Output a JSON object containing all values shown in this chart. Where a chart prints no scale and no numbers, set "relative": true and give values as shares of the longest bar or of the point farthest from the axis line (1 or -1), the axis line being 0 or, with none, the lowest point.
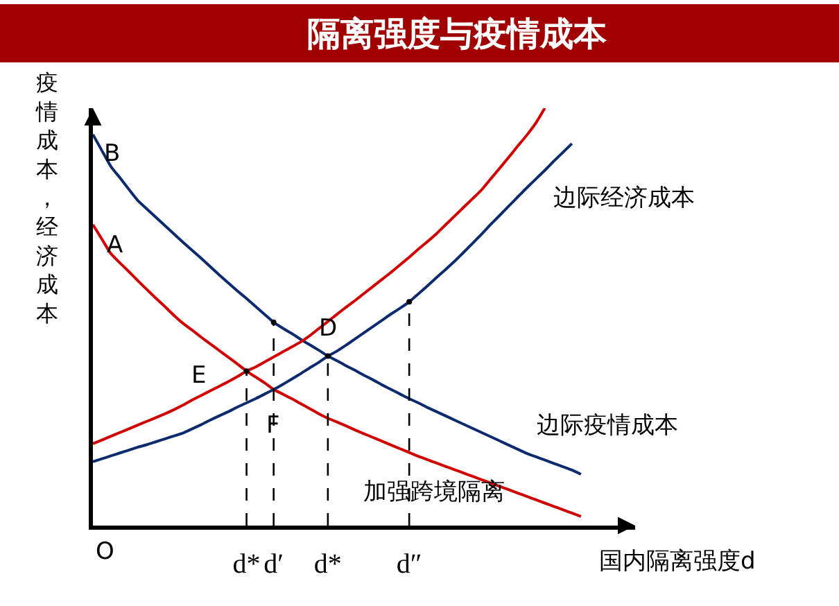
{
  "chart_data": {
    "type": "line",
    "title": "隔离强度与疫情成本",
    "xlabel": "国内隔离强度d",
    "ylabel": "疫情成本，经济成本",
    "relative": true,
    "legend": false,
    "line_style": "solid",
    "categories": [
      null,
      null,
      null,
      null,
      null,
      null,
      null,
      null,
      null,
      null,
      null,
      null,
      null,
      null,
      null,
      null,
      null,
      "d*",
      null,
      null,
      "d′",
      null,
      null,
      null,
      null,
      null,
      "d*",
      null,
      null,
      null,
      null,
      null,
      null,
      null,
      null,
      "d″",
      null,
      null,
      null,
      null,
      null,
      null,
      null,
      null,
      null,
      null,
      null,
      null,
      null,
      null,
      null,
      null,
      null,
      null,
      null,
      null,
      null,
      null,
      null,
      null,
      null
    ],
    "series": [
      {
        "name": "边际疫情成本",
        "color": "#0c2a6e",
        "values": [
          0.937,
          0.898,
          0.86,
          0.833,
          0.805,
          0.778,
          0.758,
          0.738,
          0.718,
          0.698,
          0.678,
          0.659,
          0.64,
          0.62,
          0.6,
          0.581,
          0.562,
          0.544,
          0.525,
          0.506,
          0.487,
          0.473,
          0.46,
          0.446,
          0.433,
          0.42,
          0.406,
          0.395,
          0.383,
          0.372,
          0.36,
          0.349,
          0.337,
          0.326,
          0.315,
          0.304,
          0.294,
          0.283,
          0.273,
          0.263,
          0.253,
          0.243,
          0.233,
          0.223,
          0.213,
          0.203,
          0.193,
          0.183,
          0.173,
          0.165,
          0.157,
          0.149,
          0.141,
          0.133,
          0.123,
          null,
          null,
          null,
          null,
          null,
          null
        ]
      },
      {
        "color": "#d00000",
        "values": [
          0.721,
          0.686,
          0.651,
          0.629,
          0.608,
          0.586,
          0.565,
          0.544,
          0.524,
          0.503,
          0.484,
          0.468,
          0.451,
          0.435,
          0.419,
          0.403,
          0.387,
          0.37,
          0.356,
          0.342,
          0.326,
          0.315,
          0.304,
          0.292,
          0.28,
          0.268,
          0.257,
          0.248,
          0.239,
          0.229,
          0.22,
          0.211,
          0.202,
          0.193,
          0.184,
          0.175,
          0.166,
          0.158,
          0.15,
          0.142,
          0.134,
          0.126,
          0.118,
          0.11,
          0.102,
          0.094,
          0.086,
          0.078,
          0.07,
          0.062,
          0.054,
          0.046,
          0.038,
          0.03,
          0.022,
          null,
          null,
          null,
          null,
          null,
          null
        ]
      },
      {
        "color": "#d00000",
        "values": [
          0.196,
          0.205,
          0.214,
          0.223,
          0.232,
          0.241,
          0.25,
          0.259,
          0.268,
          0.278,
          0.289,
          0.301,
          0.312,
          0.323,
          0.334,
          0.345,
          0.357,
          0.37,
          0.38,
          0.392,
          0.404,
          0.416,
          0.428,
          0.44,
          0.455,
          0.472,
          0.489,
          0.506,
          0.523,
          0.539,
          0.556,
          0.573,
          0.59,
          0.607,
          0.625,
          0.643,
          0.662,
          0.68,
          0.699,
          0.72,
          0.741,
          0.762,
          0.783,
          0.804,
          0.83,
          0.856,
          0.882,
          0.909,
          0.935,
          0.964,
          1.0,
          null,
          null,
          null,
          null,
          null,
          null,
          null,
          null,
          null,
          null
        ]
      },
      {
        "name": "边际经济成本",
        "color": "#0c2a6e",
        "values": [
          0.153,
          0.16,
          0.167,
          0.174,
          0.181,
          0.188,
          0.194,
          0.201,
          0.208,
          0.215,
          0.222,
          0.232,
          0.242,
          0.253,
          0.263,
          0.273,
          0.284,
          0.294,
          0.304,
          0.315,
          0.326,
          0.338,
          0.351,
          0.364,
          0.378,
          0.391,
          0.406,
          0.418,
          0.432,
          0.447,
          0.462,
          0.477,
          0.492,
          0.507,
          0.521,
          0.536,
          0.555,
          0.574,
          0.594,
          0.613,
          0.633,
          0.654,
          0.676,
          0.698,
          0.721,
          0.743,
          0.765,
          0.787,
          0.809,
          0.83,
          0.851,
          0.873,
          0.894,
          0.915,
          null,
          null,
          null,
          null,
          null,
          null,
          null
        ]
      },
      {
        "type": "lollipop",
        "color": "#000000",
        "line_style": "dashed",
        "values": [
          null,
          null,
          null,
          null,
          null,
          null,
          null,
          null,
          null,
          null,
          null,
          null,
          null,
          null,
          null,
          null,
          null,
          0.37,
          null,
          null,
          0.487,
          null,
          null,
          null,
          null,
          null,
          0.406,
          null,
          null,
          null,
          null,
          null,
          null,
          null,
          null,
          0.536,
          null,
          null,
          null,
          null,
          null,
          null,
          null,
          null,
          null,
          null,
          null,
          null,
          null,
          null,
          null,
          null,
          null,
          null,
          null,
          null,
          null,
          null,
          null,
          null,
          null
        ]
      }
    ],
    "annotations": [
      "B",
      "A",
      "D",
      "E",
      "F",
      "O",
      "加强跨境隔离"
    ]
  }
}
